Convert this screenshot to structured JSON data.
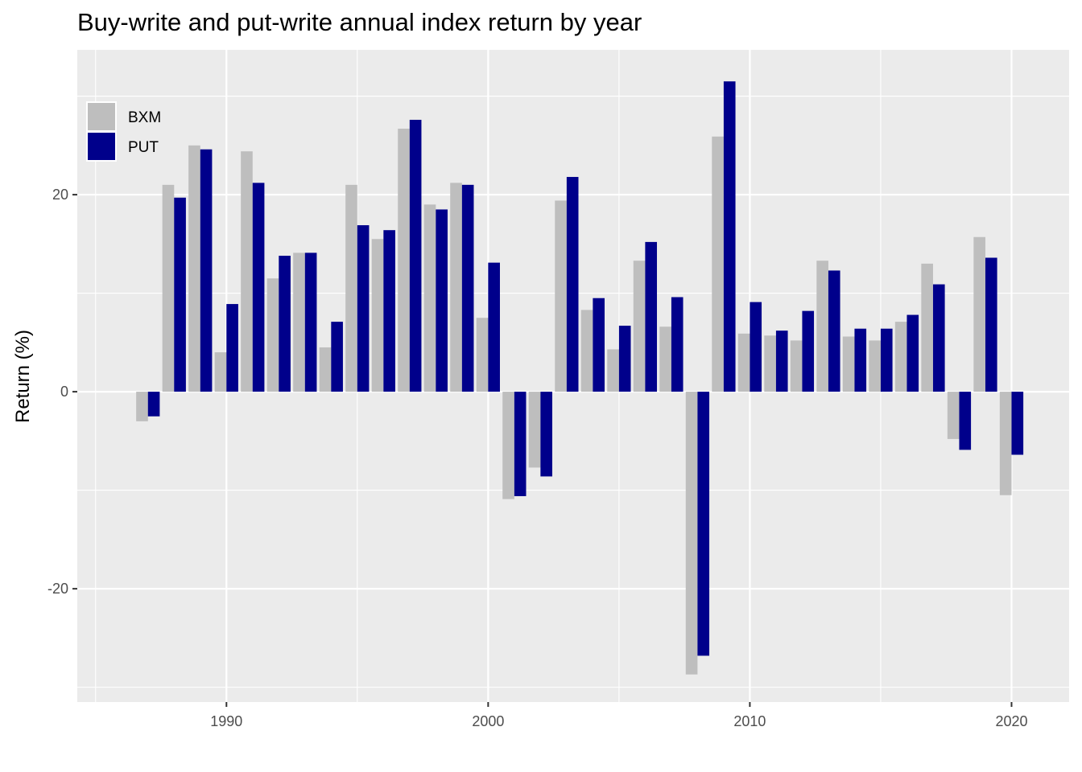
{
  "chart_data": {
    "type": "bar",
    "title": "Buy-write and put-write annual index return by year",
    "xlabel": "",
    "ylabel": "Return (%)",
    "xlim": [
      1984.3,
      2022.2
    ],
    "ylim": [
      -31.5,
      34.7
    ],
    "x_ticks": [
      1990,
      2000,
      2010,
      2020
    ],
    "y_ticks": [
      -20,
      0,
      20
    ],
    "grid": true,
    "legend_position": "top-left",
    "x": [
      1987,
      1988,
      1989,
      1990,
      1991,
      1992,
      1993,
      1994,
      1995,
      1996,
      1997,
      1998,
      1999,
      2000,
      2001,
      2002,
      2003,
      2004,
      2005,
      2006,
      2007,
      2008,
      2009,
      2010,
      2011,
      2012,
      2013,
      2014,
      2015,
      2016,
      2017,
      2018,
      2019,
      2020
    ],
    "series": [
      {
        "name": "BXM",
        "color": "#bebebe",
        "values": [
          -3.0,
          21.0,
          25.0,
          4.0,
          24.4,
          11.5,
          14.1,
          4.5,
          21.0,
          15.5,
          26.7,
          19.0,
          21.2,
          7.5,
          -10.9,
          -7.7,
          19.4,
          8.3,
          4.3,
          13.3,
          6.6,
          -28.7,
          25.9,
          5.9,
          5.7,
          5.2,
          13.3,
          5.6,
          5.2,
          7.1,
          13.0,
          -4.8,
          15.7,
          -10.5
        ]
      },
      {
        "name": "PUT",
        "color": "#00008b",
        "values": [
          -2.5,
          19.7,
          24.6,
          8.9,
          21.2,
          13.8,
          14.1,
          7.1,
          16.9,
          16.4,
          27.6,
          18.5,
          21.0,
          13.1,
          -10.6,
          -8.6,
          21.8,
          9.5,
          6.7,
          15.2,
          9.6,
          -26.8,
          31.5,
          9.1,
          6.2,
          8.2,
          12.3,
          6.4,
          6.4,
          7.8,
          10.9,
          -5.9,
          13.6,
          -6.4
        ]
      }
    ]
  }
}
